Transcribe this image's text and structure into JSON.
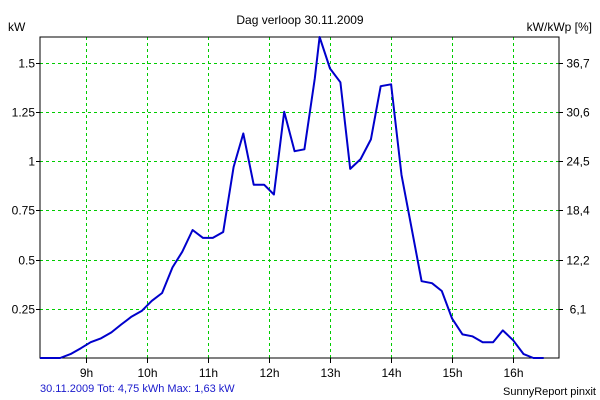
{
  "chart_data": {
    "type": "line",
    "title": "Dag  verloop 30.11.2009",
    "ylabel_left": "kW",
    "ylabel_right": "kW/kWp [%]",
    "x_tick_labels": [
      "9h",
      "10h",
      "11h",
      "12h",
      "13h",
      "14h",
      "15h",
      "16h"
    ],
    "x_ticks_hours": [
      9,
      10,
      11,
      12,
      13,
      14,
      15,
      16
    ],
    "xlim_hours": [
      8.25,
      16.75
    ],
    "ylim": [
      0,
      1.63
    ],
    "y_ticks_left": [
      0.25,
      0.5,
      0.75,
      1,
      1.25,
      1.5
    ],
    "y_tick_labels_left": [
      "0.25",
      "0.5",
      "0.75",
      "1",
      "1.25",
      "1.5"
    ],
    "y_ticks_right_labels": [
      "6,1",
      "12,2",
      "18,4",
      "24,5",
      "30,6",
      "36,7"
    ],
    "grid": true,
    "line_color": "#0000cc",
    "grid_color": "#00cc00",
    "series": [
      {
        "x": [
          8.25,
          8.42,
          8.58,
          8.75,
          8.92,
          9.08,
          9.25,
          9.42,
          9.58,
          9.75,
          9.92,
          10.08,
          10.25,
          10.42,
          10.58,
          10.75,
          10.92,
          11.08,
          11.25,
          11.42,
          11.58,
          11.75,
          11.92,
          12.08,
          12.25,
          12.42,
          12.58,
          12.75,
          12.83,
          13.0,
          13.17,
          13.33,
          13.5,
          13.67,
          13.83,
          14.0,
          14.17,
          14.33,
          14.5,
          14.67,
          14.83,
          15.0,
          15.17,
          15.33,
          15.5,
          15.67,
          15.83,
          16.0,
          16.17,
          16.33,
          16.5
        ],
        "values": [
          0.0,
          0.0,
          0.0,
          0.02,
          0.05,
          0.08,
          0.1,
          0.13,
          0.17,
          0.21,
          0.24,
          0.29,
          0.33,
          0.46,
          0.54,
          0.65,
          0.61,
          0.61,
          0.64,
          0.97,
          1.14,
          0.88,
          0.88,
          0.83,
          1.25,
          1.05,
          1.06,
          1.42,
          1.63,
          1.47,
          1.4,
          0.96,
          1.01,
          1.11,
          1.38,
          1.39,
          0.93,
          0.67,
          0.39,
          0.38,
          0.34,
          0.2,
          0.12,
          0.11,
          0.08,
          0.08,
          0.14,
          0.09,
          0.02,
          0.0,
          0.0
        ]
      }
    ]
  },
  "footer": {
    "summary": "30.11.2009 Tot: 4,75 kWh Max: 1,63 kW",
    "brand": "SunnyReport pinxit"
  }
}
